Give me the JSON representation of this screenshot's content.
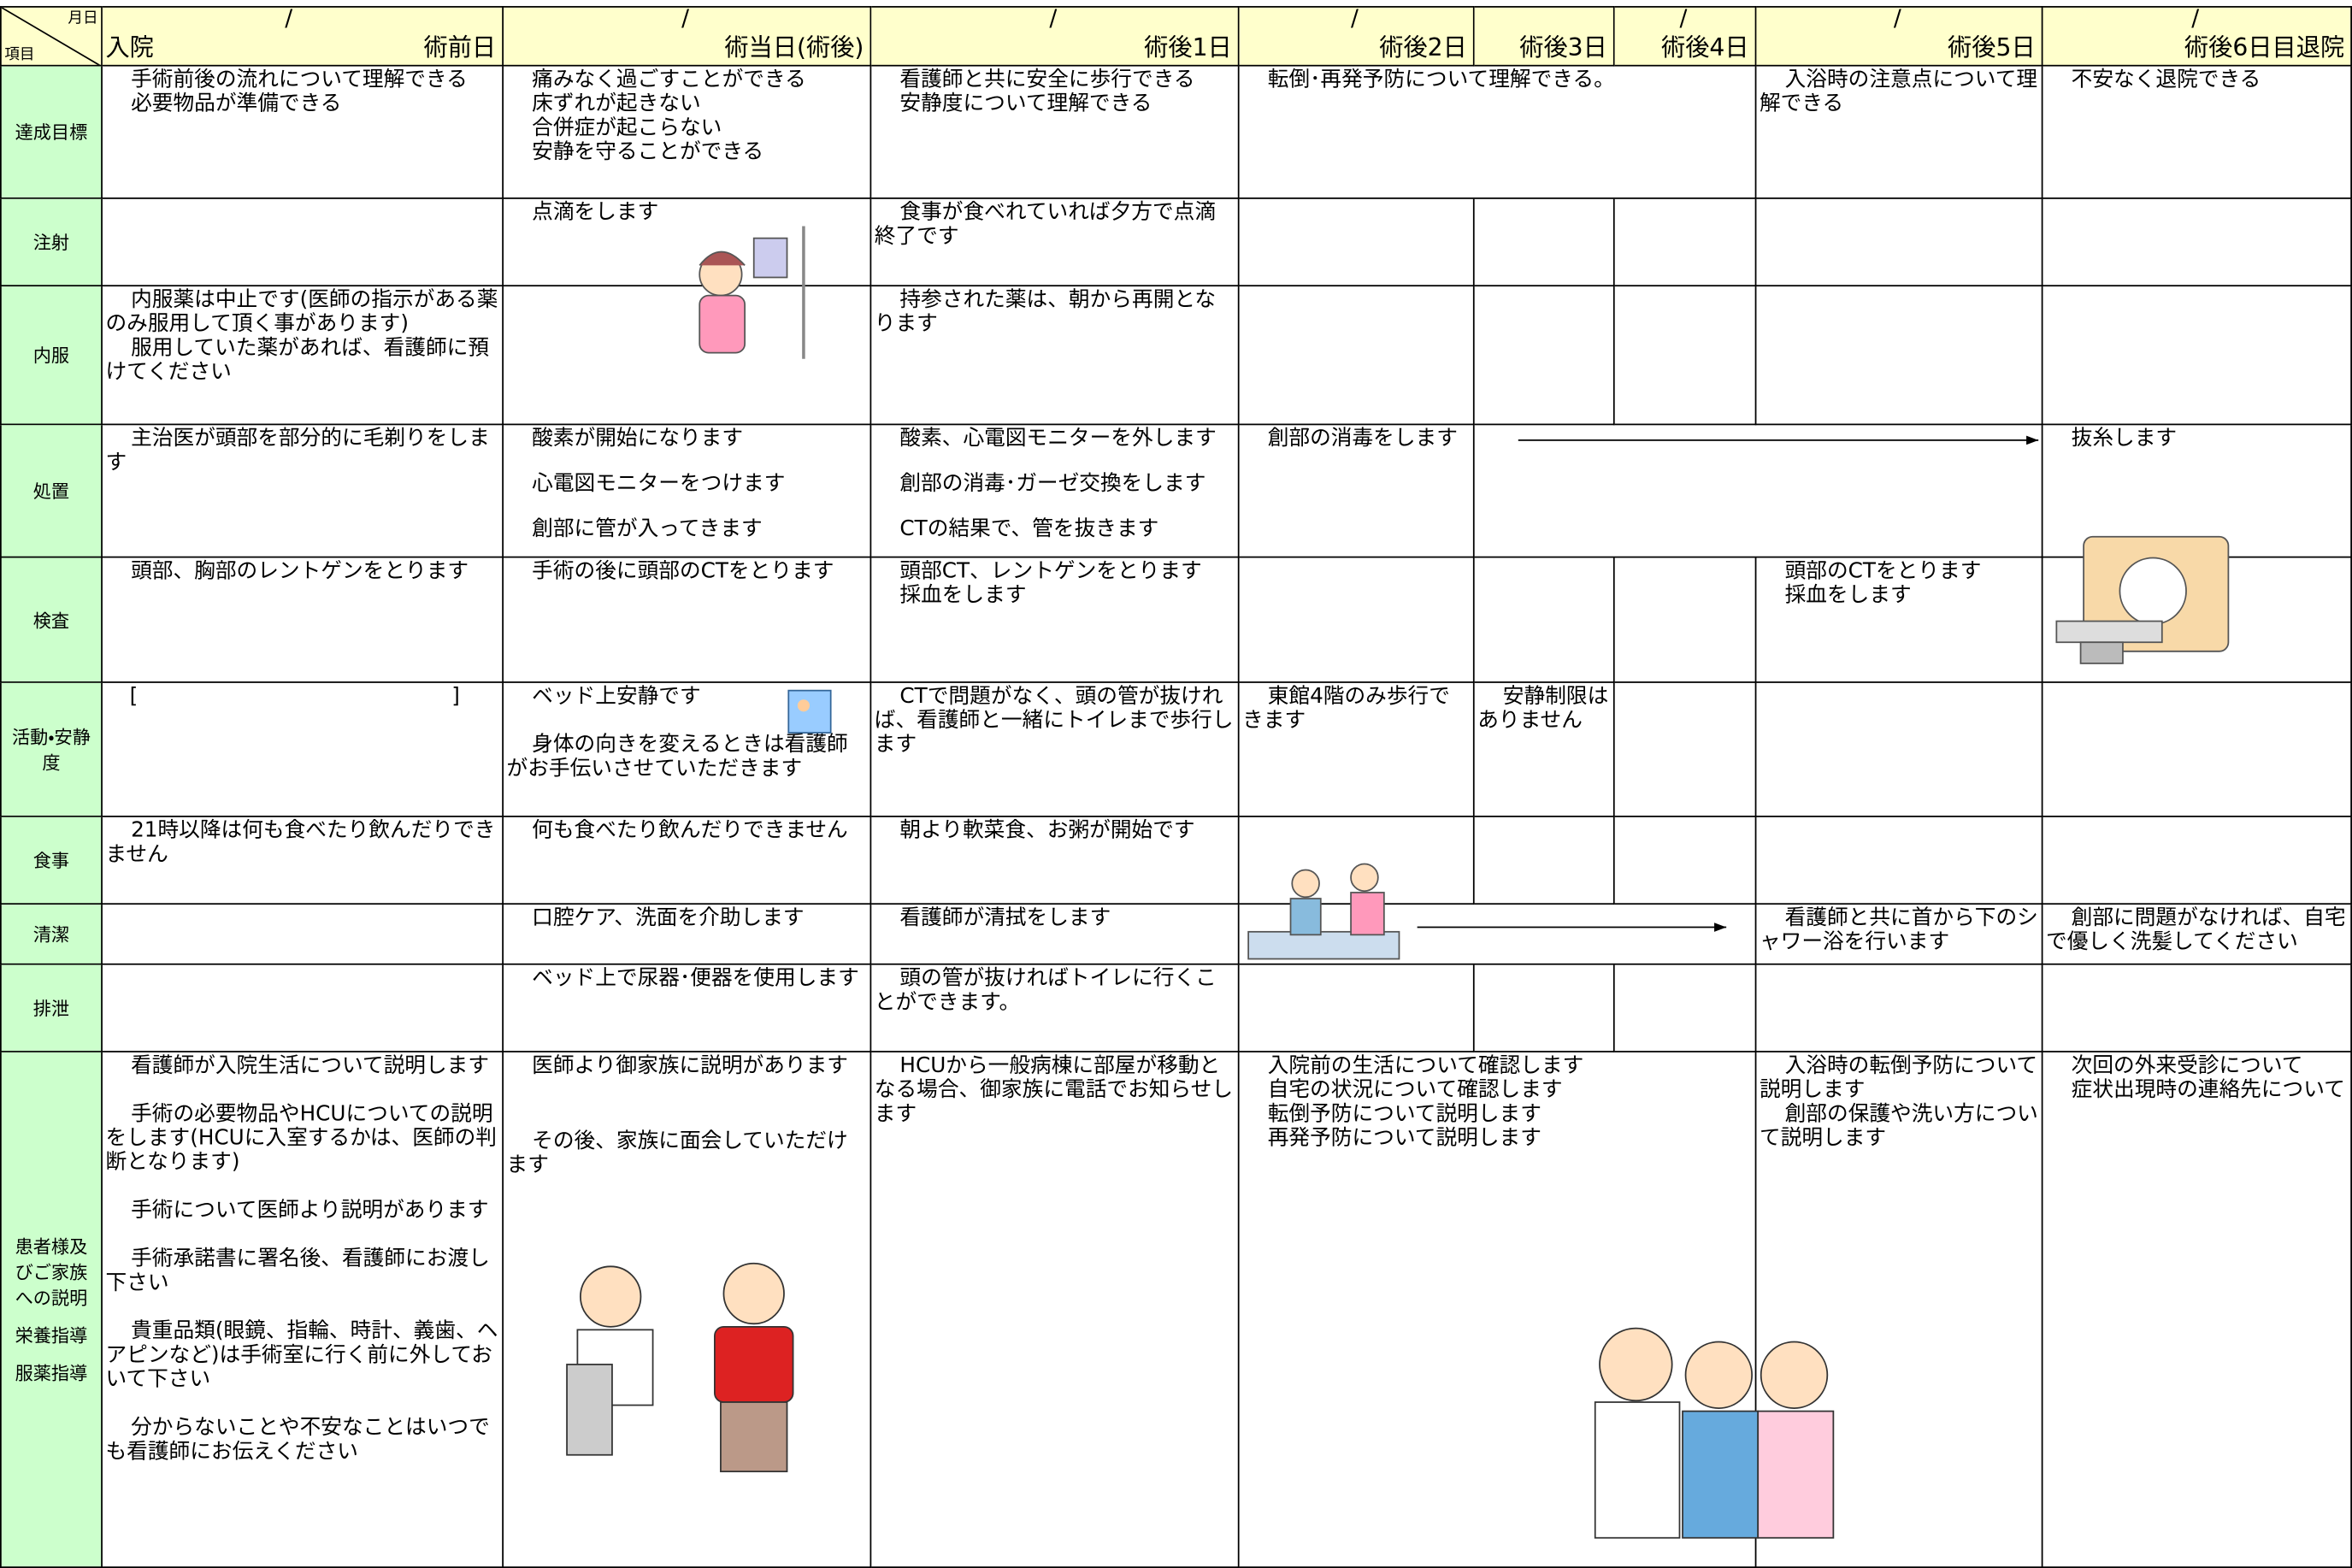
{
  "header": {
    "corner": {
      "top": "月日",
      "bottom": "項目"
    },
    "columns": [
      {
        "slash": "/",
        "left": "入院",
        "label": "術前日"
      },
      {
        "slash": "/",
        "label": "術当日(術後)"
      },
      {
        "slash": "/",
        "label": "術後1日"
      },
      {
        "slash": "/",
        "label": "術後2日"
      },
      {
        "label": "術後3日"
      },
      {
        "slash": "/",
        "label": "術後4日"
      },
      {
        "slash": "/",
        "label": "術後5日"
      },
      {
        "slash": "/",
        "label": "術後6日目退院"
      }
    ]
  },
  "rows": [
    {
      "label": [
        "達成目標"
      ],
      "cells": [
        [
          "手術前後の流れについて理解できる",
          "必要物品が準備できる"
        ],
        [
          "痛みなく過ごすことができる",
          "床ずれが起きない",
          "合併症が起こらない",
          "安静を守ることができる"
        ],
        [
          "看護師と共に安全に歩行できる",
          "安静度について理解できる"
        ],
        [
          "転倒･再発予防について理解できる。"
        ],
        [
          "入浴時の注意点について理解できる"
        ],
        [
          "不安なく退院できる"
        ]
      ]
    },
    {
      "label": [
        "注射"
      ],
      "cells": [
        [],
        [
          "点滴をします"
        ],
        [
          "食事が食べれていれば夕方で点滴終了です"
        ],
        [],
        [],
        [],
        [],
        []
      ]
    },
    {
      "label": [
        "内服"
      ],
      "cells": [
        [
          "内服薬は中止です(医師の指示がある薬のみ服用して頂く事があります)",
          "服用していた薬があれば、看護師に預けてください"
        ],
        [],
        [
          "持参された薬は、朝から再開となります"
        ],
        [],
        [],
        [],
        [],
        []
      ]
    },
    {
      "label": [
        "処置"
      ],
      "cells": [
        [
          "主治医が頭部を部分的に毛剃りをします"
        ],
        [
          "酸素が開始になります",
          "心電図モニターをつけます",
          "創部に管が入ってきます"
        ],
        [
          "酸素、心電図モニターを外します",
          "創部の消毒･ガーゼ交換をします",
          "CTの結果で、管を抜きます"
        ],
        [
          "創部の消毒をします"
        ],
        [],
        [
          "抜糸します"
        ]
      ]
    },
    {
      "label": [
        "検査"
      ],
      "cells": [
        [
          "頭部、胸部のレントゲンをとります"
        ],
        [
          "手術の後に頭部のCTをとります"
        ],
        [
          "頭部CT、レントゲンをとります",
          "採血をします"
        ],
        [],
        [],
        [],
        [
          "頭部のCTをとります",
          "採血をします"
        ],
        []
      ]
    },
    {
      "label": [
        "活動・安静度"
      ],
      "cells": [
        [
          "[",
          "]"
        ],
        [
          "ベッド上安静です",
          "身体の向きを変えるときは看護師がお手伝いさせていただきます"
        ],
        [
          "CTで問題がなく、頭の管が抜ければ、看護師と一緒にトイレまで歩行します"
        ],
        [
          "東館4階のみ歩行できます"
        ],
        [
          "安静制限はありません"
        ],
        [],
        [],
        []
      ]
    },
    {
      "label": [
        "食事"
      ],
      "cells": [
        [
          "21時以降は何も食べたり飲んだりできません"
        ],
        [
          "何も食べたり飲んだりできません"
        ],
        [
          "朝より軟菜食、お粥が開始です"
        ],
        [],
        [],
        [],
        [],
        []
      ]
    },
    {
      "label": [
        "清潔"
      ],
      "cells": [
        [],
        [
          "口腔ケア、洗面を介助します"
        ],
        [
          "看護師が清拭をします"
        ],
        [],
        [
          "看護師と共に首から下のシャワー浴を行います"
        ],
        [
          "創部に問題がなければ、自宅で優しく洗髪してください"
        ]
      ]
    },
    {
      "label": [
        "排泄"
      ],
      "cells": [
        [],
        [
          "ベッド上で尿器･便器を使用します"
        ],
        [
          "頭の管が抜ければトイレに行くことができます。"
        ],
        [],
        [],
        [],
        [],
        []
      ]
    },
    {
      "label": [
        "患者様及びご家族への説明",
        "栄養指導",
        "服薬指導"
      ],
      "cells": [
        [
          "看護師が入院生活について説明します",
          "手術の必要物品やHCUについての説明をします(HCUに入室するかは、医師の判断となります)",
          "手術について医師より説明があります",
          "手術承諾書に署名後、看護師にお渡し下さい",
          "貴重品類(眼鏡、指輪、時計、義歯、ヘアピンなど)は手術室に行く前に外しておいて下さい",
          "分からないことや不安なことはいつでも看護師にお伝えください"
        ],
        [
          "医師より御家族に説明があります",
          "その後、家族に面会していただけます"
        ],
        [
          "HCUから一般病棟に部屋が移動となる場合、御家族に電話でお知らせします"
        ],
        [
          "入院前の生活について確認します",
          "自宅の状況について確認します",
          "転倒予防について説明します",
          "再発予防について説明します"
        ],
        [
          "入浴時の転倒予防について説明します",
          "創部の保護や洗い方について説明します"
        ],
        [
          "次回の外来受診について",
          "症状出現時の連絡先について"
        ]
      ]
    }
  ]
}
